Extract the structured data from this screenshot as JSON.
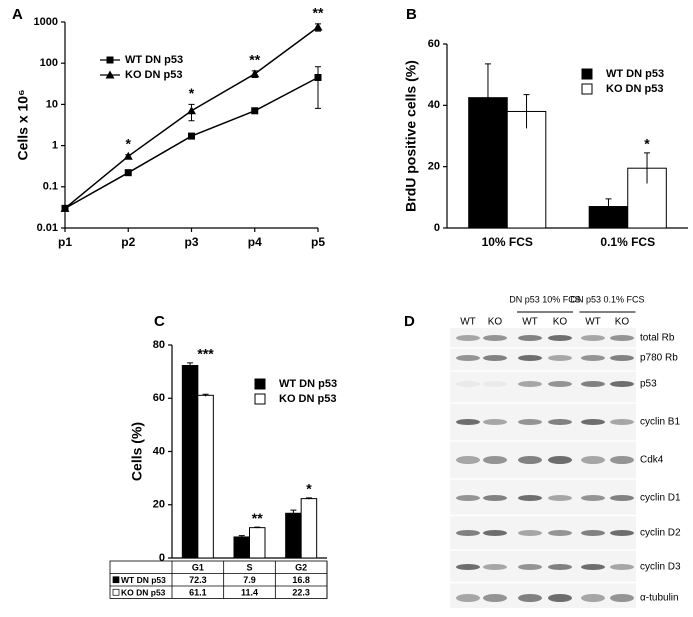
{
  "chart_data": [
    {
      "type": "line",
      "panel": "A",
      "ylabel": "Cells x 10⁶",
      "log_scale": true,
      "categories": [
        "p1",
        "p2",
        "p3",
        "p4",
        "p5"
      ],
      "series": [
        {
          "name": "WT DN p53",
          "color": "#000000",
          "marker": "square",
          "values": [
            0.03,
            0.22,
            1.7,
            7,
            45
          ],
          "errors": [
            0,
            0.03,
            0.2,
            0.8,
            37
          ]
        },
        {
          "name": "KO DN p53",
          "color": "#000000",
          "marker": "triangle",
          "values": [
            0.03,
            0.55,
            7,
            55,
            750
          ],
          "errors": [
            0,
            0.05,
            3,
            10,
            150
          ]
        }
      ],
      "annotations": [
        null,
        "*",
        "*",
        "**",
        "**"
      ],
      "ylim": [
        0.01,
        1000
      ],
      "yticks": [
        0.01,
        0.1,
        1,
        10,
        100,
        1000
      ]
    },
    {
      "type": "bar",
      "panel": "B",
      "ylabel": "BrdU positive cells (%)",
      "categories": [
        "10% FCS",
        "0.1% FCS"
      ],
      "series": [
        {
          "name": "WT DN p53",
          "color": "#000000",
          "values": [
            42.5,
            7
          ],
          "errors": [
            11,
            2.5
          ]
        },
        {
          "name": "KO DN p53",
          "color": "#ffffff",
          "values": [
            38,
            19.5
          ],
          "errors": [
            5.5,
            5
          ]
        }
      ],
      "annotations": [
        null,
        "*"
      ],
      "ylim": [
        0,
        60
      ],
      "yticks": [
        0,
        20,
        40,
        60
      ]
    },
    {
      "type": "bar",
      "panel": "C",
      "ylabel": "Cells (%)",
      "table": true,
      "categories": [
        "G1",
        "S",
        "G2"
      ],
      "series": [
        {
          "name": "WT DN p53",
          "color": "#000000",
          "values": [
            72.3,
            7.9,
            16.8
          ],
          "errors": [
            1,
            0.5,
            1.2
          ]
        },
        {
          "name": "KO DN p53",
          "color": "#ffffff",
          "values": [
            61.1,
            11.4,
            22.3
          ],
          "errors": [
            0.4,
            0.2,
            0.3
          ]
        }
      ],
      "annotations": [
        "***",
        "**",
        "*"
      ],
      "ylim": [
        0,
        80
      ],
      "yticks": [
        0,
        20,
        40,
        60,
        80
      ]
    }
  ],
  "blot": {
    "panel": "D",
    "lanes": [
      "WT",
      "KO",
      "WT",
      "KO",
      "WT",
      "KO"
    ],
    "groups": [
      "DN p53 10% FCS",
      "DN p53 0.1% FCS"
    ],
    "rows": [
      "total Rb",
      "p780 Rb",
      "p53",
      "cyclin B1",
      "Cdk4",
      "cyclin D1",
      "cyclin D2",
      "cyclin D3",
      "α-tubulin"
    ]
  }
}
